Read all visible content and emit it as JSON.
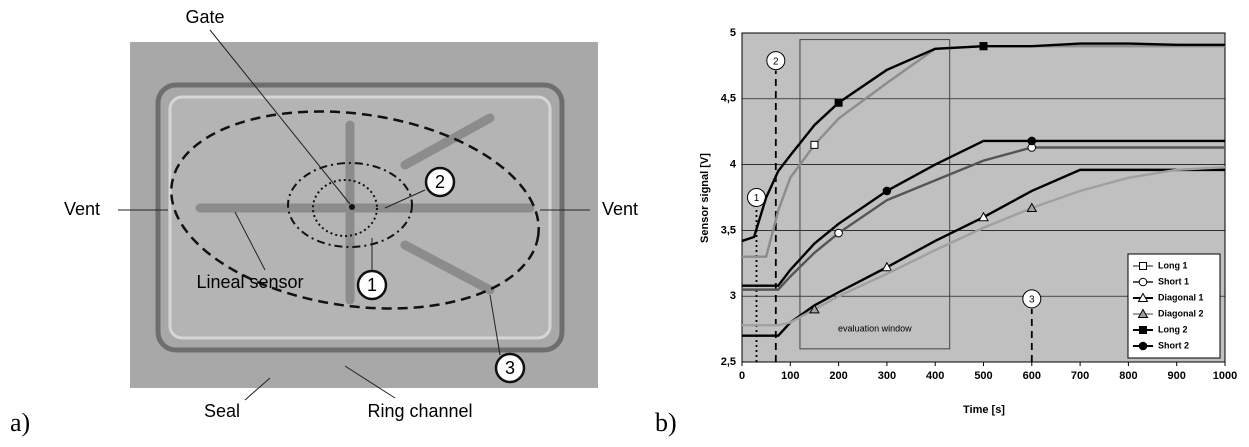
{
  "panel_a": {
    "label": "a)",
    "callouts": [
      "Gate",
      "Vent",
      "Vent",
      "Lineal sensor",
      "Seal",
      "Ring channel"
    ],
    "numbers": [
      "1",
      "2",
      "3"
    ]
  },
  "panel_b": {
    "label": "b)"
  },
  "chart_data": {
    "type": "line",
    "xlabel": "Time [s]",
    "ylabel": "Sensor signal [V]",
    "x": [
      0,
      25,
      50,
      75,
      100,
      150,
      200,
      300,
      400,
      500,
      600,
      700,
      800,
      900,
      1000
    ],
    "xlim": [
      0,
      1000
    ],
    "xticks": [
      0,
      100,
      200,
      300,
      400,
      500,
      600,
      700,
      800,
      900,
      1000
    ],
    "ylim": [
      2.5,
      5
    ],
    "yticks": [
      {
        "value": 2.5,
        "label": "2,5"
      },
      3,
      {
        "value": 3.5,
        "label": "3,5"
      },
      4,
      {
        "value": 4.5,
        "label": "4,5"
      },
      5
    ],
    "grid": true,
    "background": "#c0c0c0",
    "legend": "lower right",
    "series": [
      {
        "name": "Long 1",
        "color": "#8c8c8c",
        "marker": "square",
        "filled": false,
        "values": [
          3.3,
          3.3,
          3.3,
          3.65,
          3.9,
          4.15,
          4.35,
          4.62,
          4.88,
          4.9,
          4.9,
          4.9,
          4.9,
          4.9,
          4.9
        ]
      },
      {
        "name": "Short 1",
        "color": "#555555",
        "marker": "circle",
        "filled": false,
        "values": [
          3.05,
          3.05,
          3.05,
          3.05,
          3.15,
          3.33,
          3.48,
          3.73,
          3.88,
          4.03,
          4.13,
          4.13,
          4.13,
          4.13,
          4.13
        ]
      },
      {
        "name": "Diagonal 1",
        "color": "#000000",
        "marker": "triangle",
        "filled": false,
        "values": [
          2.7,
          2.7,
          2.7,
          2.7,
          2.8,
          2.93,
          3.03,
          3.22,
          3.42,
          3.6,
          3.8,
          3.96,
          3.96,
          3.96,
          3.96
        ]
      },
      {
        "name": "Diagonal 2",
        "color": "#a0a0a0",
        "marker": "triangle",
        "filled": true,
        "values": [
          2.78,
          2.78,
          2.78,
          2.78,
          2.8,
          2.9,
          3.0,
          3.17,
          3.35,
          3.52,
          3.67,
          3.8,
          3.9,
          3.96,
          3.98
        ]
      },
      {
        "name": "Long 2",
        "color": "#000000",
        "marker": "square",
        "filled": true,
        "values": [
          3.42,
          3.45,
          3.75,
          3.95,
          4.07,
          4.3,
          4.47,
          4.72,
          4.88,
          4.9,
          4.9,
          4.92,
          4.92,
          4.91,
          4.91
        ]
      },
      {
        "name": "Short 2",
        "color": "#000000",
        "marker": "circle",
        "filled": true,
        "values": [
          3.08,
          3.08,
          3.08,
          3.08,
          3.2,
          3.4,
          3.55,
          3.8,
          4.0,
          4.18,
          4.18,
          4.18,
          4.18,
          4.18,
          4.18
        ]
      }
    ],
    "events": [
      {
        "label": "1",
        "x": 30
      },
      {
        "label": "2",
        "x": 70
      },
      {
        "label": "3",
        "x": 600
      }
    ],
    "window": {
      "label": "evaluation window",
      "xlim": [
        120,
        430
      ],
      "ylim": [
        2.6,
        4.95
      ]
    }
  }
}
